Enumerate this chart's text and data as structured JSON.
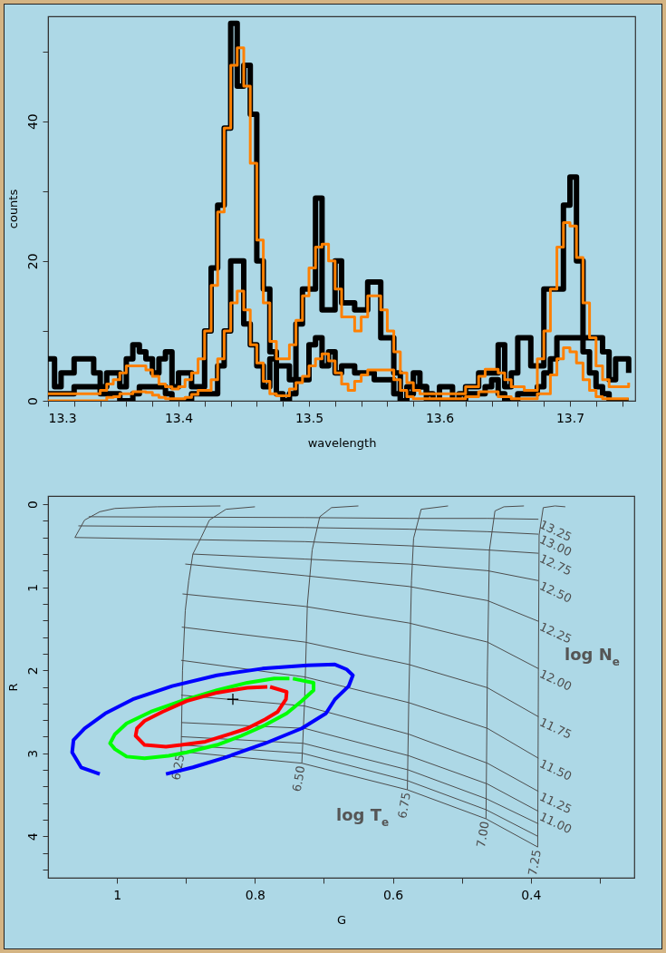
{
  "chart_data": [
    {
      "type": "step",
      "xlabel": "wavelength",
      "ylabel": "counts",
      "xlim": [
        13.3,
        13.75
      ],
      "ylim": [
        0,
        55
      ],
      "xticks": [
        13.3,
        {
          "value": 13.32,
          "label": null
        },
        {
          "value": 13.34,
          "label": null
        },
        {
          "value": 13.36,
          "label": null
        },
        {
          "value": 13.38,
          "label": null
        },
        13.4,
        {
          "value": 13.42,
          "label": null
        },
        {
          "value": 13.44,
          "label": null
        },
        {
          "value": 13.46,
          "label": null
        },
        {
          "value": 13.48,
          "label": null
        },
        13.5,
        {
          "value": 13.52,
          "label": null
        },
        {
          "value": 13.54,
          "label": null
        },
        {
          "value": 13.56,
          "label": null
        },
        {
          "value": 13.58,
          "label": null
        },
        13.6,
        {
          "value": 13.62,
          "label": null
        },
        {
          "value": 13.64,
          "label": null
        },
        {
          "value": 13.66,
          "label": null
        },
        {
          "value": 13.68,
          "label": null
        },
        13.7,
        {
          "value": 13.72,
          "label": null
        },
        {
          "value": 13.74,
          "label": null
        }
      ],
      "yticks": [
        0,
        {
          "value": 10,
          "label": null
        },
        20,
        {
          "value": 30,
          "label": null
        },
        40,
        {
          "value": 50,
          "label": null
        }
      ],
      "x": [
        13.3,
        13.305,
        13.31,
        13.315,
        13.32,
        13.325,
        13.33,
        13.335,
        13.34,
        13.345,
        13.35,
        13.355,
        13.36,
        13.365,
        13.37,
        13.375,
        13.38,
        13.385,
        13.39,
        13.395,
        13.4,
        13.405,
        13.41,
        13.415,
        13.42,
        13.425,
        13.43,
        13.435,
        13.44,
        13.445,
        13.45,
        13.455,
        13.46,
        13.465,
        13.47,
        13.475,
        13.48,
        13.485,
        13.49,
        13.495,
        13.5,
        13.505,
        13.51,
        13.515,
        13.52,
        13.525,
        13.53,
        13.535,
        13.54,
        13.545,
        13.55,
        13.555,
        13.56,
        13.565,
        13.57,
        13.575,
        13.58,
        13.585,
        13.59,
        13.595,
        13.6,
        13.605,
        13.61,
        13.615,
        13.62,
        13.625,
        13.63,
        13.635,
        13.64,
        13.645,
        13.65,
        13.655,
        13.66,
        13.665,
        13.67,
        13.675,
        13.68,
        13.685,
        13.69,
        13.695,
        13.7,
        13.705,
        13.71,
        13.715,
        13.72,
        13.725,
        13.73,
        13.735,
        13.74,
        13.745
      ],
      "series": [
        {
          "color": "#000000",
          "values": [
            6,
            2,
            4,
            4,
            6,
            6,
            6,
            4,
            2,
            4,
            4,
            2,
            6,
            8,
            7,
            6,
            4,
            6,
            7,
            2,
            4,
            4,
            2,
            2,
            10,
            19,
            28,
            39,
            54,
            45,
            48,
            41,
            20,
            16,
            7,
            5,
            5,
            3,
            11,
            16,
            16,
            29,
            13,
            13,
            20,
            14,
            14,
            13,
            13,
            17,
            17,
            9,
            9,
            4,
            0,
            2,
            4,
            2,
            0,
            0,
            2,
            2,
            0,
            0,
            2,
            2,
            4,
            4,
            4,
            8,
            2,
            4,
            9,
            9,
            5,
            5,
            16,
            16,
            16,
            28,
            32,
            20,
            9,
            9,
            9,
            7,
            3,
            6,
            6,
            4
          ]
        },
        {
          "color": "#000000",
          "values": [
            1,
            1,
            1,
            1,
            2,
            2,
            2,
            2,
            1,
            1,
            1,
            0,
            0,
            1,
            2,
            2,
            2,
            2,
            1,
            0,
            0,
            0,
            1,
            1,
            1,
            1,
            5,
            10,
            20,
            20,
            11,
            8,
            5,
            2,
            6,
            1,
            0,
            1,
            3,
            3,
            8,
            9,
            5,
            7,
            4,
            5,
            5,
            4,
            4,
            4,
            3,
            3,
            3,
            1,
            0,
            1,
            2,
            2,
            1,
            0,
            0,
            0,
            0,
            1,
            1,
            1,
            1,
            2,
            3,
            1,
            0,
            0,
            1,
            1,
            1,
            2,
            4,
            6,
            9,
            9,
            9,
            9,
            7,
            4,
            2,
            1,
            0,
            0,
            0,
            0
          ]
        },
        {
          "color": "#ff8000",
          "values": [
            1,
            1,
            1,
            1,
            1,
            1,
            1,
            1,
            1.5,
            2.4,
            3,
            4,
            5,
            5,
            5,
            4.4,
            3.5,
            2.4,
            2,
            1.7,
            2,
            3,
            4,
            6,
            10,
            16.5,
            27,
            39,
            48,
            50.5,
            45,
            34,
            23,
            14,
            8.5,
            6,
            6,
            8,
            11.5,
            15,
            19,
            22,
            22.4,
            20,
            16,
            12,
            12,
            10,
            12,
            15,
            15,
            13,
            10,
            7,
            4,
            2.6,
            1.5,
            1,
            1,
            1,
            1,
            1,
            1,
            1,
            2,
            2,
            3.5,
            4.5,
            4.5,
            4,
            3,
            2,
            2,
            1.5,
            1.5,
            6,
            10,
            16,
            22,
            25.5,
            25,
            20.5,
            14,
            9,
            5,
            3,
            2,
            2,
            2,
            2.6
          ]
        },
        {
          "color": "#ff8000",
          "values": [
            0,
            0,
            0,
            0,
            0,
            0,
            0,
            0,
            0,
            0.5,
            0.6,
            1,
            1,
            1.3,
            1.3,
            1.2,
            0.8,
            0.5,
            0.3,
            0.3,
            0.3,
            0.5,
            0.9,
            1.5,
            1.5,
            3,
            6,
            10,
            14,
            15.7,
            13,
            8,
            5.4,
            2.8,
            1,
            0.7,
            0.7,
            1.7,
            2.6,
            3.5,
            5,
            6,
            6.7,
            5.7,
            4,
            2.4,
            1.5,
            2.8,
            3.7,
            4.4,
            4.4,
            4.4,
            4.4,
            3,
            1.5,
            0.6,
            0.3,
            0.3,
            0.3,
            0.3,
            0.3,
            0.3,
            0.3,
            0.3,
            0.6,
            0.6,
            1.3,
            1.3,
            1.3,
            0.6,
            0.6,
            0.3,
            0.3,
            0.3,
            0.3,
            1,
            1,
            3.7,
            6,
            7.6,
            7,
            5.4,
            3,
            1.5,
            0.6,
            0.3,
            0.3,
            0.3,
            0.3,
            0.3
          ]
        }
      ]
    },
    {
      "type": "line",
      "xlabel": "G",
      "ylabel": "R",
      "xlim": [
        1.1,
        0.25
      ],
      "ylim": [
        4.5,
        -0.1
      ],
      "xticks": [
        1,
        {
          "value": 0.9,
          "label": null
        },
        0.8,
        {
          "value": 0.7,
          "label": null
        },
        0.6,
        {
          "value": 0.5,
          "label": null
        },
        0.4,
        {
          "value": 0.3,
          "label": null
        }
      ],
      "yticks": [
        0,
        {
          "value": 0.2,
          "label": null
        },
        {
          "value": 0.4,
          "label": null
        },
        {
          "value": 0.6,
          "label": null
        },
        {
          "value": 0.8,
          "label": null
        },
        1,
        {
          "value": 1.2,
          "label": null
        },
        {
          "value": 1.4,
          "label": null
        },
        {
          "value": 1.6,
          "label": null
        },
        {
          "value": 1.8,
          "label": null
        },
        2,
        {
          "value": 2.2,
          "label": null
        },
        {
          "value": 2.4,
          "label": null
        },
        {
          "value": 2.6,
          "label": null
        },
        {
          "value": 2.8,
          "label": null
        },
        3,
        {
          "value": 3.2,
          "label": null
        },
        {
          "value": 3.4,
          "label": null
        },
        {
          "value": 3.6,
          "label": null
        },
        {
          "value": 3.8,
          "label": null
        },
        4,
        {
          "value": 4.2,
          "label": null
        },
        {
          "value": 4.4,
          "label": null
        }
      ],
      "annotations": [
        "log N$_{e}$",
        "log T$_{e}$"
      ],
      "series": [
        {
          "name": "6.25",
          "color": "#4d4d4d",
          "x": [
            0.907,
            0.905,
            0.901,
            0.896,
            0.89,
            0.878,
            0.866,
            0.842,
            0.8
          ],
          "values": [
            2.98,
            2.0,
            1.28,
            0.92,
            0.6,
            0.4,
            0.19,
            0.06,
            0.03
          ]
        },
        {
          "name": "6.50",
          "color": "#4d4d4d",
          "x": [
            0.732,
            0.728,
            0.724,
            0.717,
            0.706,
            0.689,
            0.65
          ],
          "values": [
            3.12,
            2.37,
            1.21,
            0.55,
            0.15,
            0.04,
            0.02
          ]
        },
        {
          "name": "6.75",
          "color": "#4d4d4d",
          "x": [
            0.579,
            0.577,
            0.573,
            0.57,
            0.559,
            0.52
          ],
          "values": [
            3.44,
            2.37,
            0.92,
            0.41,
            0.06,
            0.02
          ]
        },
        {
          "name": "7.00",
          "color": "#4d4d4d",
          "x": [
            0.465,
            0.463,
            0.46,
            0.452,
            0.439,
            0.41
          ],
          "values": [
            3.79,
            2.01,
            0.55,
            0.08,
            0.03,
            0.02
          ]
        },
        {
          "name": "7.25",
          "color": "#4d4d4d",
          "x": [
            0.39,
            0.389,
            0.388,
            0.382,
            0.365,
            0.35
          ],
          "values": [
            4.13,
            2.01,
            0.37,
            0.04,
            0.02,
            0.03
          ]
        },
        {
          "color": "#4d4d4d",
          "x": [
            1.061,
            1.047,
            1.025,
            1.003,
            0.942,
            0.85
          ],
          "values": [
            0.4,
            0.19,
            0.09,
            0.05,
            0.03,
            0.02
          ]
        },
        {
          "name": "13.25",
          "color": "#4d4d4d",
          "x": [
            1.041,
            0.728,
            0.577,
            0.463,
            0.389
          ],
          "values": [
            0.15,
            0.16,
            0.17,
            0.17,
            0.18
          ]
        },
        {
          "name": "13.00",
          "color": "#4d4d4d",
          "x": [
            1.056,
            0.728,
            0.577,
            0.463,
            0.389
          ],
          "values": [
            0.26,
            0.28,
            0.3,
            0.33,
            0.36
          ]
        },
        {
          "name": "12.75",
          "color": "#4d4d4d",
          "x": [
            1.061,
            0.728,
            0.577,
            0.463,
            0.389
          ],
          "values": [
            0.4,
            0.45,
            0.5,
            0.55,
            0.59
          ]
        },
        {
          "name": "12.50",
          "color": "#4d4d4d",
          "x": [
            0.89,
            0.728,
            0.577,
            0.463,
            0.389
          ],
          "values": [
            0.6,
            0.66,
            0.72,
            0.8,
            0.92
          ]
        },
        {
          "name": "12.25",
          "color": "#4d4d4d",
          "x": [
            0.901,
            0.728,
            0.577,
            0.463,
            0.389
          ],
          "values": [
            0.72,
            0.86,
            0.99,
            1.16,
            1.41
          ]
        },
        {
          "name": "12.00",
          "color": "#4d4d4d",
          "x": [
            0.905,
            0.728,
            0.577,
            0.463,
            0.389
          ],
          "values": [
            1.08,
            1.23,
            1.43,
            1.66,
            1.98
          ]
        },
        {
          "name": "11.75",
          "color": "#4d4d4d",
          "x": [
            0.906,
            0.728,
            0.577,
            0.463,
            0.389
          ],
          "values": [
            1.48,
            1.66,
            1.93,
            2.21,
            2.56
          ]
        },
        {
          "name": "11.50",
          "color": "#4d4d4d",
          "x": [
            0.907,
            0.728,
            0.577,
            0.463,
            0.389
          ],
          "values": [
            1.88,
            2.08,
            2.39,
            2.7,
            3.06
          ]
        },
        {
          "name": "11.25",
          "color": "#4d4d4d",
          "x": [
            0.907,
            0.728,
            0.577,
            0.463,
            0.389
          ],
          "values": [
            2.3,
            2.43,
            2.77,
            3.12,
            3.46
          ]
        },
        {
          "name": "11.00",
          "color": "#4d4d4d",
          "x": [
            0.907,
            0.728,
            0.577,
            0.463,
            0.389
          ],
          "values": [
            2.63,
            2.7,
            3.03,
            3.37,
            3.7
          ]
        },
        {
          "color": "#4d4d4d",
          "x": [
            0.907,
            0.73,
            0.578,
            0.464,
            0.389
          ],
          "values": [
            2.8,
            2.88,
            3.2,
            3.55,
            3.85
          ]
        },
        {
          "color": "#4d4d4d",
          "x": [
            0.907,
            0.731,
            0.579,
            0.465,
            0.39
          ],
          "values": [
            2.9,
            3.0,
            3.33,
            3.68,
            4.0
          ]
        },
        {
          "color": "#4d4d4d",
          "x": [
            0.907,
            0.732,
            0.579,
            0.465,
            0.39
          ],
          "values": [
            2.98,
            3.12,
            3.44,
            3.79,
            4.13
          ]
        },
        {
          "color": "#0000ff",
          "x": [
            1.025,
            1.052,
            1.065,
            1.063,
            1.047,
            1.017,
            0.977,
            0.92,
            0.855,
            0.789,
            0.724,
            0.684,
            0.667,
            0.658,
            0.664,
            0.684,
            0.697,
            0.732,
            0.785,
            0.846,
            0.89,
            0.929
          ],
          "values": [
            3.25,
            3.17,
            2.99,
            2.84,
            2.7,
            2.52,
            2.35,
            2.19,
            2.06,
            1.98,
            1.94,
            1.93,
            1.99,
            2.06,
            2.19,
            2.35,
            2.52,
            2.7,
            2.88,
            3.06,
            3.17,
            3.25
          ]
        },
        {
          "color": "#00ff00",
          "x": [
            0.745,
            0.715,
            0.715,
            0.732,
            0.754,
            0.785,
            0.82,
            0.855,
            0.899,
            0.925,
            0.96,
            0.986,
            1.003,
            1.01,
            1.003,
            0.986,
            0.951,
            0.907,
            0.855,
            0.811,
            0.772,
            0.75
          ],
          "values": [
            2.1,
            2.15,
            2.24,
            2.37,
            2.52,
            2.66,
            2.79,
            2.9,
            2.99,
            3.03,
            3.06,
            3.04,
            2.95,
            2.88,
            2.77,
            2.64,
            2.5,
            2.37,
            2.24,
            2.15,
            2.1,
            2.1
          ]
        },
        {
          "color": "#ff0000",
          "x": [
            0.778,
            0.754,
            0.755,
            0.767,
            0.785,
            0.811,
            0.837,
            0.872,
            0.907,
            0.929,
            0.96,
            0.973,
            0.971,
            0.96,
            0.934,
            0.899,
            0.855,
            0.811,
            0.782
          ],
          "values": [
            2.2,
            2.26,
            2.35,
            2.5,
            2.59,
            2.7,
            2.77,
            2.86,
            2.9,
            2.92,
            2.9,
            2.79,
            2.7,
            2.61,
            2.5,
            2.37,
            2.27,
            2.21,
            2.2
          ]
        },
        {
          "type": "scatter",
          "marker": "cross",
          "color": "#000000",
          "x": [
            0.832
          ],
          "values": [
            2.35
          ]
        }
      ]
    }
  ]
}
